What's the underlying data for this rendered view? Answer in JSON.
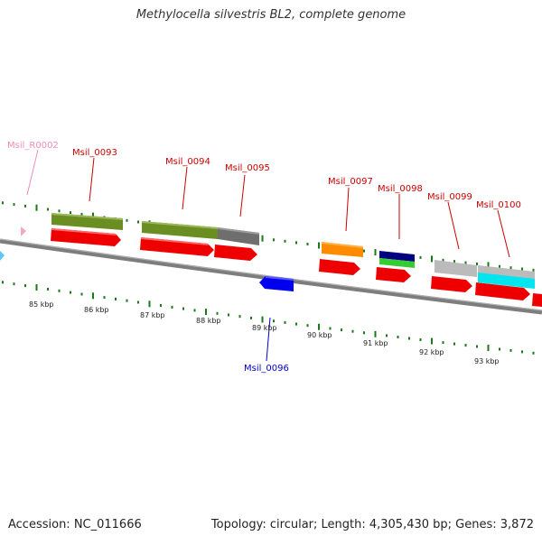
{
  "title": "Methylocella silvestris BL2, complete genome",
  "footer": {
    "accession": "Accession: NC_011666",
    "summary": "Topology: circular; Length: 4,305,430 bp; Genes: 3,872"
  },
  "scale_labels": [
    "85 kbp",
    "86 kbp",
    "87 kbp",
    "88 kbp",
    "89 kbp",
    "90 kbp",
    "91 kbp",
    "92 kbp",
    "93 kbp"
  ],
  "gene_labels": [
    {
      "name": "Msil_R0002",
      "color": "#f08cb4"
    },
    {
      "name": "Msil_0093",
      "color": "#cc0000"
    },
    {
      "name": "Msil_0094",
      "color": "#cc0000"
    },
    {
      "name": "Msil_0095",
      "color": "#cc0000"
    },
    {
      "name": "Msil_0097",
      "color": "#cc0000"
    },
    {
      "name": "Msil_0098",
      "color": "#cc0000"
    },
    {
      "name": "Msil_0099",
      "color": "#cc0000"
    },
    {
      "name": "Msil_0100",
      "color": "#cc0000"
    },
    {
      "name": "Msil_0096",
      "color": "#0000cc"
    }
  ],
  "colors": {
    "cds": "#ee0000",
    "cds_reverse": "#0000ee",
    "rna": "#f4a6c8",
    "tick": "#1a7a1a",
    "backbone": "#888888",
    "olive": "#6b8e23",
    "gray_feature": "#6e6e6e",
    "orange": "#ff8c00",
    "navy": "#000080",
    "green": "#33cc33",
    "light_gray": "#bbbbbb",
    "cyan": "#00e5ee",
    "light_blue": "#5ac8fa"
  }
}
